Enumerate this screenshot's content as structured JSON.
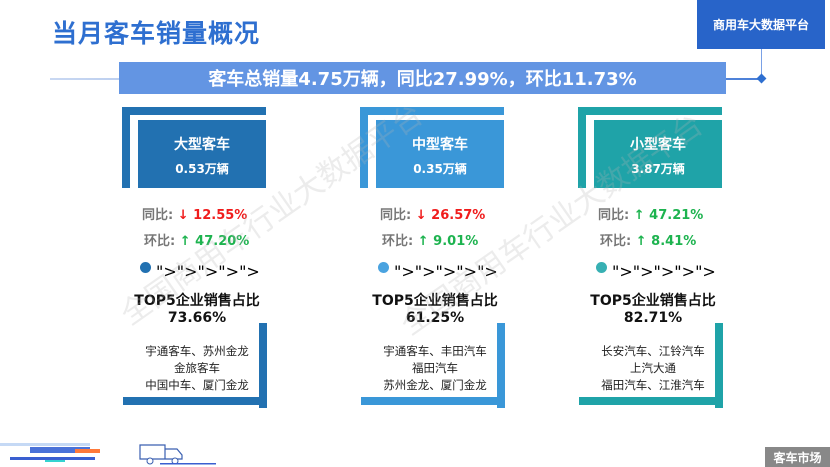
{
  "header": {
    "title": "当月客车销量概况",
    "brand": "商用车大数据平台"
  },
  "summary": "客车总销量4.75万辆，同比27.99%，环比11.73%",
  "watermark": "全国商用车行业大数据平台",
  "cards": [
    {
      "name": "大型客车",
      "volume": "0.53万辆",
      "color": "#2271b1",
      "dot_color": "#2271b1",
      "yoy_label": "同比:",
      "yoy_arrow": "↓",
      "yoy": "12.55%",
      "yoy_dir": "down",
      "mom_label": "环比:",
      "mom_arrow": "↑",
      "mom": "47.20%",
      "mom_dir": "up",
      "top5_label": "TOP5企业销售占比",
      "top5": "73.66%",
      "companies": [
        "宇通客车、苏州金龙",
        "金旅客车",
        "中国中车、厦门金龙"
      ]
    },
    {
      "name": "中型客车",
      "volume": "0.35万辆",
      "color": "#3a97d8",
      "dot_color": "#4aa3e0",
      "yoy_label": "同比:",
      "yoy_arrow": "↓",
      "yoy": "26.57%",
      "yoy_dir": "down",
      "mom_label": "环比:",
      "mom_arrow": "↑",
      "mom": "9.01%",
      "mom_dir": "up",
      "top5_label": "TOP5企业销售占比",
      "top5": "61.25%",
      "companies": [
        "宇通客车、丰田汽车",
        "福田汽车",
        "苏州金龙、厦门金龙"
      ]
    },
    {
      "name": "小型客车",
      "volume": "3.87万辆",
      "color": "#1fa3a8",
      "dot_color": "#37b0b3",
      "yoy_label": "同比:",
      "yoy_arrow": "↑",
      "yoy": "47.21%",
      "yoy_dir": "up",
      "mom_label": "环比:",
      "mom_arrow": "↑",
      "mom": "8.41%",
      "mom_dir": "up",
      "top5_label": "TOP5企业销售占比",
      "top5": "82.71%",
      "companies": [
        "长安汽车、江铃汽车",
        "上汽大通",
        "福田汽车、江淮汽车"
      ]
    }
  ],
  "footer": {
    "section": "客车市场"
  }
}
